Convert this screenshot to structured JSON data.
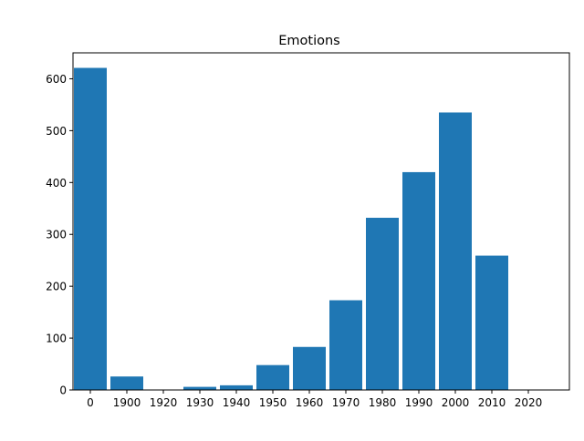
{
  "chart_data": {
    "type": "bar",
    "title": "Emotions",
    "xlabel": "",
    "ylabel": "",
    "categories": [
      "0",
      "1900",
      "1920",
      "1930",
      "1940",
      "1950",
      "1960",
      "1970",
      "1980",
      "1990",
      "2000",
      "2010",
      "2020"
    ],
    "values": [
      621,
      26,
      0,
      6,
      9,
      48,
      83,
      173,
      332,
      420,
      535,
      259,
      0
    ],
    "ylim": [
      0,
      650
    ],
    "yticks": [
      0,
      100,
      200,
      300,
      400,
      500,
      600
    ],
    "grid": false,
    "legend": "none",
    "bar_color": "#1f77b4"
  }
}
